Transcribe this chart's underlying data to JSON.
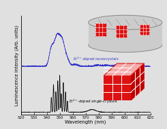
{
  "xlabel": "Wavelength (nm)",
  "ylabel": "Luminescence Intensity (Arb. units)",
  "xmin": 520,
  "xmax": 620,
  "xticks": [
    520,
    530,
    540,
    550,
    560,
    570,
    580,
    590,
    600,
    610,
    620
  ],
  "label_nanocrystals": "Er$^{3+}$-doped nanocrystals",
  "label_singlecrystals": "Er$^{3+}$-doped single-crystals",
  "color_nano": "#3333cc",
  "color_single": "#000000",
  "background": "#e0e0e0",
  "cube_red": "#dd1111",
  "cube_light": "#f5aaaa",
  "cube_dark": "#bb0000",
  "cyl_color": "#cccccc",
  "cyl_edge": "#888888",
  "white": "#ffffff"
}
